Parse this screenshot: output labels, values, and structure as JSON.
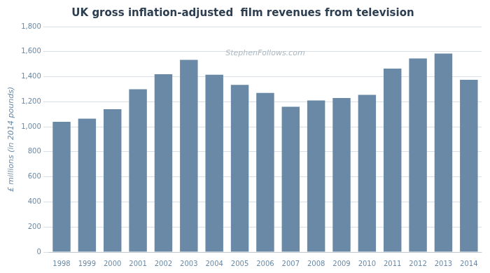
{
  "chart_data": {
    "type": "bar",
    "title": "UK gross inflation-adjusted  film revenues from television",
    "ylabel": "£ millions (in 2014 pounds)",
    "annotations": [
      "StephenFollows.com"
    ],
    "categories": [
      "1998",
      "1999",
      "2000",
      "2001",
      "2002",
      "2003",
      "2004",
      "2005",
      "2006",
      "2007",
      "2008",
      "2009",
      "2010",
      "2011",
      "2012",
      "2013",
      "2014"
    ],
    "values": [
      1040,
      1065,
      1140,
      1300,
      1420,
      1535,
      1415,
      1335,
      1270,
      1160,
      1210,
      1230,
      1255,
      1465,
      1545,
      1585,
      1375
    ],
    "color": "#6989a6",
    "ylim": [
      0,
      1800
    ],
    "yticks": [
      0,
      200,
      400,
      600,
      800,
      {
        "value": 1000,
        "label": "1,000"
      },
      {
        "value": 1200,
        "label": "1,200"
      },
      {
        "value": 1400,
        "label": "1,400"
      },
      {
        "value": 1600,
        "label": "1,600"
      },
      {
        "value": 1800,
        "label": "1,800"
      }
    ],
    "grid": true
  }
}
